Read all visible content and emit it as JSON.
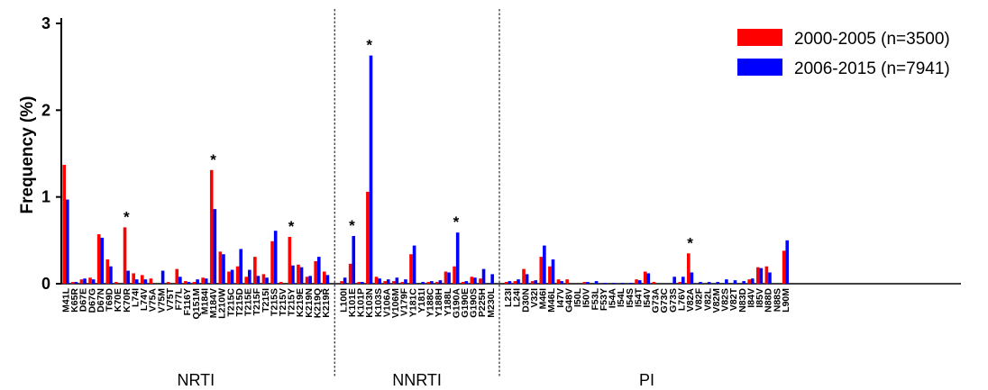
{
  "chart_data": {
    "type": "bar",
    "ylabel": "Frequency (%)",
    "ylim": [
      0,
      3
    ],
    "yticks": [
      "0",
      "1",
      "2",
      "3"
    ],
    "legend_position": "top-right",
    "series": [
      {
        "name": "2000-2005 (n=3500)",
        "color": "#ff0000"
      },
      {
        "name": "2006-2015 (n=7941)",
        "color": "#0000ff"
      }
    ],
    "groups": [
      {
        "name": "NRTI",
        "categories": [
          "M41L",
          "K65R",
          "D67E",
          "D67G",
          "D67N",
          "T69D",
          "K70E",
          "K70R",
          "L74I",
          "L74V",
          "V75A",
          "V75M",
          "V75T",
          "F77L",
          "F116Y",
          "Q151M",
          "M184I",
          "M184V",
          "L210W",
          "T215C",
          "T215D",
          "T215E",
          "T215F",
          "T215I",
          "T215S",
          "T215V",
          "T215Y",
          "K219E",
          "K219N",
          "K219Q",
          "K219R"
        ],
        "values_2000_2005": [
          1.37,
          0.02,
          0.05,
          0.07,
          0.57,
          0.28,
          0.02,
          0.65,
          0.12,
          0.1,
          0.06,
          0.0,
          0.02,
          0.17,
          0.03,
          0.02,
          0.07,
          1.31,
          0.37,
          0.14,
          0.2,
          0.08,
          0.31,
          0.11,
          0.49,
          0.02,
          0.54,
          0.22,
          0.08,
          0.26,
          0.14
        ],
        "values_2006_2015": [
          0.97,
          0.02,
          0.06,
          0.05,
          0.53,
          0.2,
          0.0,
          0.15,
          0.05,
          0.05,
          0.0,
          0.15,
          0.0,
          0.08,
          0.02,
          0.05,
          0.06,
          0.86,
          0.34,
          0.16,
          0.4,
          0.16,
          0.09,
          0.07,
          0.61,
          0.0,
          0.21,
          0.19,
          0.09,
          0.31,
          0.1
        ]
      },
      {
        "name": "NNRTI",
        "categories": [
          "L100I",
          "K101E",
          "K101P",
          "K103N",
          "K103S",
          "V106A",
          "V106M",
          "V179F",
          "Y181C",
          "Y181I",
          "Y188C",
          "Y188H",
          "Y188L",
          "G190A",
          "G190E",
          "G190S",
          "P225H",
          "M230L"
        ],
        "values_2000_2005": [
          0.03,
          0.23,
          0.02,
          1.06,
          0.08,
          0.03,
          0.03,
          0.02,
          0.34,
          0.0,
          0.02,
          0.02,
          0.14,
          0.2,
          0.02,
          0.08,
          0.06,
          0.0
        ],
        "values_2006_2015": [
          0.07,
          0.55,
          0.02,
          2.63,
          0.06,
          0.05,
          0.07,
          0.05,
          0.44,
          0.02,
          0.03,
          0.04,
          0.13,
          0.59,
          0.03,
          0.07,
          0.17,
          0.11
        ]
      },
      {
        "name": "PI",
        "categories": [
          "L23I",
          "L24I",
          "D30N",
          "V32I",
          "M46I",
          "M46L",
          "I47V",
          "G48V",
          "I50L",
          "I50V",
          "F53L",
          "F53Y",
          "I54A",
          "I54L",
          "I54S",
          "I54T",
          "I54V",
          "G73A",
          "G73C",
          "G73S",
          "L76V",
          "V82A",
          "V82F",
          "V82L",
          "V82M",
          "V82S",
          "V82T",
          "N83D",
          "I84V",
          "I85V",
          "N88D",
          "N88S",
          "L90M"
        ],
        "values_2000_2005": [
          0.02,
          0.03,
          0.17,
          0.03,
          0.31,
          0.2,
          0.05,
          0.05,
          0.0,
          0.02,
          0.0,
          0.0,
          0.0,
          0.0,
          0.0,
          0.05,
          0.14,
          0.02,
          0.0,
          0.0,
          0.02,
          0.35,
          0.0,
          0.0,
          0.0,
          0.0,
          0.0,
          0.0,
          0.05,
          0.19,
          0.2,
          0.0,
          0.38
        ],
        "values_2006_2015": [
          0.03,
          0.05,
          0.11,
          0.04,
          0.44,
          0.28,
          0.03,
          0.0,
          0.0,
          0.02,
          0.03,
          0.01,
          0.01,
          0.01,
          0.01,
          0.04,
          0.12,
          0.0,
          0.0,
          0.08,
          0.08,
          0.13,
          0.02,
          0.02,
          0.02,
          0.05,
          0.04,
          0.03,
          0.06,
          0.18,
          0.13,
          0.0,
          0.5
        ]
      }
    ],
    "significance_marker": "*",
    "significant_categories": [
      "K70R",
      "M184V",
      "T215Y",
      "K101E",
      "K103N",
      "G190A",
      "V82A"
    ]
  }
}
